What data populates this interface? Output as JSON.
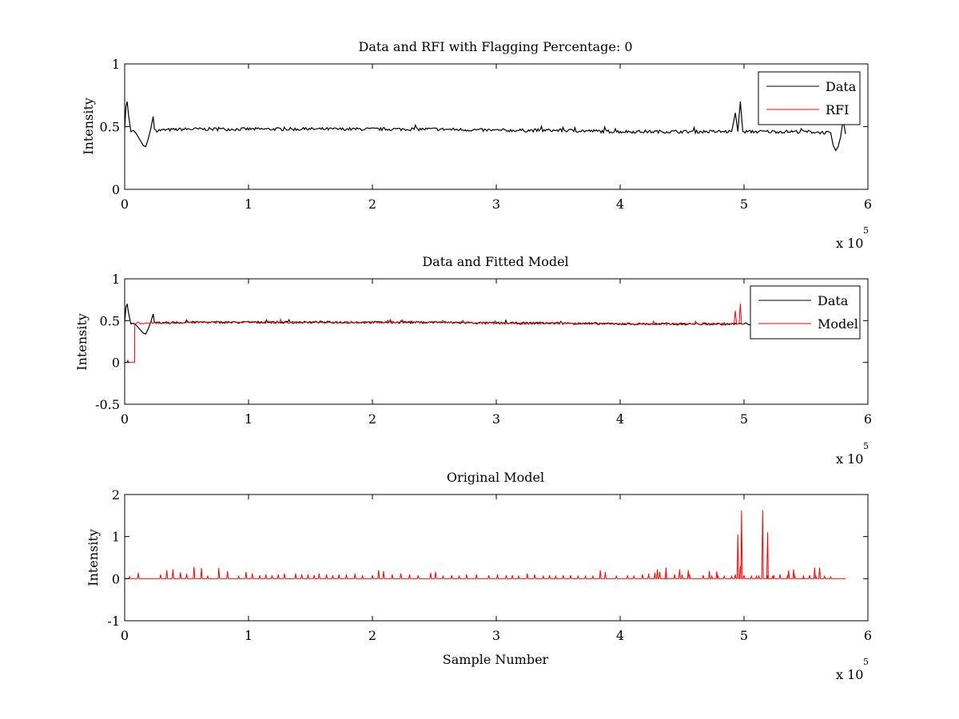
{
  "figure": {
    "background": "#ffffff",
    "colors": {
      "data": "#000000",
      "rfi": "#ff0000",
      "model": "#ff0000",
      "original": "#ff0000"
    }
  },
  "chart_data": [
    {
      "type": "line",
      "title": "Data and RFI with Flagging Percentage: 0",
      "xlabel": "",
      "ylabel": "Intensity",
      "xlim": [
        0,
        600000
      ],
      "ylim": [
        0,
        1
      ],
      "xticks": [
        0,
        100000,
        200000,
        300000,
        400000,
        500000,
        600000
      ],
      "xtick_labels": [
        "0",
        "1",
        "2",
        "3",
        "4",
        "5",
        "6"
      ],
      "yticks": [
        0,
        0.5,
        1
      ],
      "ytick_labels": [
        "0",
        "0.5",
        "1"
      ],
      "x_multiplier": {
        "text": "x 10",
        "exponent": "5"
      },
      "legend": {
        "position": "top-right",
        "entries": [
          {
            "name": "Data",
            "color": "#000000"
          },
          {
            "name": "RFI",
            "color": "#ff0000"
          }
        ]
      },
      "series": [
        {
          "name": "Data",
          "color": "#000000",
          "x": [
            0,
            1000,
            2000,
            3000,
            5000,
            7000,
            9000,
            12000,
            15000,
            17000,
            19000,
            21000,
            23000,
            24000,
            26000,
            50000,
            100000,
            150000,
            200000,
            250000,
            300000,
            350000,
            400000,
            450000,
            490000,
            493000,
            495000,
            497000,
            499000,
            501000,
            520000,
            550000,
            570000,
            572000,
            574000,
            576000,
            578000,
            580000,
            582000
          ],
          "y": [
            0.48,
            0.66,
            0.7,
            0.6,
            0.46,
            0.47,
            0.45,
            0.4,
            0.35,
            0.34,
            0.4,
            0.48,
            0.58,
            0.48,
            0.47,
            0.48,
            0.48,
            0.48,
            0.48,
            0.48,
            0.47,
            0.47,
            0.46,
            0.46,
            0.46,
            0.61,
            0.46,
            0.7,
            0.46,
            0.46,
            0.46,
            0.46,
            0.45,
            0.35,
            0.31,
            0.34,
            0.42,
            0.55,
            0.44
          ]
        },
        {
          "name": "RFI",
          "color": "#ff0000",
          "x": [],
          "y": []
        }
      ]
    },
    {
      "type": "line",
      "title": "Data and Fitted Model",
      "xlabel": "",
      "ylabel": "Intensity",
      "xlim": [
        0,
        600000
      ],
      "ylim": [
        -0.5,
        1
      ],
      "xticks": [
        0,
        100000,
        200000,
        300000,
        400000,
        500000,
        600000
      ],
      "xtick_labels": [
        "0",
        "1",
        "2",
        "3",
        "4",
        "5",
        "6"
      ],
      "yticks": [
        -0.5,
        0,
        0.5,
        1
      ],
      "ytick_labels": [
        "-0.5",
        "0",
        "0.5",
        "1"
      ],
      "x_multiplier": {
        "text": "x 10",
        "exponent": "5"
      },
      "legend": {
        "position": "top-right",
        "entries": [
          {
            "name": "Data",
            "color": "#000000"
          },
          {
            "name": "Model",
            "color": "#ff0000"
          }
        ]
      },
      "series": [
        {
          "name": "Data",
          "color": "#000000",
          "x": [
            0,
            1000,
            2000,
            3000,
            5000,
            7000,
            9000,
            12000,
            15000,
            17000,
            19000,
            21000,
            23000,
            24000,
            26000,
            50000,
            100000,
            150000,
            200000,
            250000,
            300000,
            350000,
            400000,
            450000,
            490000,
            520000,
            550000
          ],
          "y": [
            0.48,
            0.66,
            0.7,
            0.6,
            0.46,
            0.47,
            0.45,
            0.4,
            0.35,
            0.34,
            0.4,
            0.48,
            0.58,
            0.48,
            0.47,
            0.48,
            0.48,
            0.48,
            0.48,
            0.48,
            0.47,
            0.47,
            0.46,
            0.46,
            0.46,
            0.46,
            0.46
          ]
        },
        {
          "name": "Model",
          "color": "#ff0000",
          "x": [
            0,
            2000,
            2500,
            3000,
            8000,
            8000,
            10000,
            50000,
            100000,
            150000,
            200000,
            250000,
            300000,
            350000,
            400000,
            450000,
            492000,
            493000,
            494000,
            496000,
            497000,
            498000,
            500000
          ],
          "y": [
            0,
            0,
            0.03,
            0,
            0,
            0.46,
            0.47,
            0.48,
            0.48,
            0.48,
            0.48,
            0.48,
            0.47,
            0.47,
            0.46,
            0.46,
            0.46,
            0.62,
            0.46,
            0.46,
            0.7,
            0.46,
            0.46
          ]
        }
      ]
    },
    {
      "type": "line",
      "title": "Original Model",
      "xlabel": "Sample Number",
      "ylabel": "Intensity",
      "xlim": [
        0,
        600000
      ],
      "ylim": [
        -1,
        2
      ],
      "xticks": [
        0,
        100000,
        200000,
        300000,
        400000,
        500000,
        600000
      ],
      "xtick_labels": [
        "0",
        "1",
        "2",
        "3",
        "4",
        "5",
        "6"
      ],
      "yticks": [
        -1,
        0,
        1,
        2
      ],
      "ytick_labels": [
        "-1",
        "0",
        "1",
        "2"
      ],
      "x_multiplier": {
        "text": "x 10",
        "exponent": "5"
      },
      "series": [
        {
          "name": "",
          "color": "#ff0000",
          "baseline": 0,
          "x_range": [
            0,
            582000
          ],
          "spikes": [
            [
              4000,
              0.05
            ],
            [
              11000,
              0.14
            ],
            [
              29000,
              0.1
            ],
            [
              34000,
              0.2
            ],
            [
              39000,
              0.22
            ],
            [
              45000,
              0.15
            ],
            [
              50000,
              0.12
            ],
            [
              56000,
              0.28
            ],
            [
              62000,
              0.25
            ],
            [
              67000,
              0.06
            ],
            [
              76000,
              0.25
            ],
            [
              83000,
              0.18
            ],
            [
              92000,
              0.06
            ],
            [
              98000,
              0.16
            ],
            [
              103000,
              0.12
            ],
            [
              109000,
              0.08
            ],
            [
              114000,
              0.1
            ],
            [
              119000,
              0.08
            ],
            [
              124000,
              0.1
            ],
            [
              129000,
              0.12
            ],
            [
              138000,
              0.12
            ],
            [
              143000,
              0.1
            ],
            [
              148000,
              0.1
            ],
            [
              153000,
              0.08
            ],
            [
              157000,
              0.12
            ],
            [
              163000,
              0.1
            ],
            [
              168000,
              0.08
            ],
            [
              173000,
              0.1
            ],
            [
              179000,
              0.1
            ],
            [
              186000,
              0.12
            ],
            [
              192000,
              0.08
            ],
            [
              200000,
              0.08
            ],
            [
              205000,
              0.2
            ],
            [
              209000,
              0.18
            ],
            [
              216000,
              0.1
            ],
            [
              223000,
              0.12
            ],
            [
              230000,
              0.1
            ],
            [
              237000,
              0.08
            ],
            [
              247000,
              0.14
            ],
            [
              251000,
              0.16
            ],
            [
              257000,
              0.06
            ],
            [
              264000,
              0.08
            ],
            [
              270000,
              0.06
            ],
            [
              276000,
              0.1
            ],
            [
              284000,
              0.1
            ],
            [
              294000,
              0.08
            ],
            [
              301000,
              0.1
            ],
            [
              308000,
              0.08
            ],
            [
              313000,
              0.08
            ],
            [
              318000,
              0.06
            ],
            [
              325000,
              0.12
            ],
            [
              331000,
              0.1
            ],
            [
              338000,
              0.06
            ],
            [
              343000,
              0.08
            ],
            [
              348000,
              0.06
            ],
            [
              354000,
              0.08
            ],
            [
              360000,
              0.08
            ],
            [
              366000,
              0.06
            ],
            [
              372000,
              0.06
            ],
            [
              378000,
              0.06
            ],
            [
              384000,
              0.2
            ],
            [
              388000,
              0.16
            ],
            [
              397000,
              0.06
            ],
            [
              406000,
              0.08
            ],
            [
              411000,
              0.06
            ],
            [
              418000,
              0.1
            ],
            [
              423000,
              0.12
            ],
            [
              428000,
              0.14
            ],
            [
              432000,
              0.16
            ],
            [
              437000,
              0.14
            ],
            [
              444000,
              0.1
            ],
            [
              450000,
              0.1
            ],
            [
              456000,
              0.1
            ],
            [
              467000,
              0.08
            ],
            [
              474000,
              0.06
            ],
            [
              479000,
              0.06
            ],
            [
              484000,
              0.06
            ],
            [
              490000,
              0.06
            ],
            [
              493000,
              0.1
            ],
            [
              500000,
              0.08
            ],
            [
              512000,
              0.06
            ],
            [
              519000,
              0.06
            ],
            [
              524000,
              0.08
            ],
            [
              529000,
              0.1
            ],
            [
              535000,
              0.06
            ],
            [
              541000,
              0.06
            ],
            [
              548000,
              0.06
            ],
            [
              553000,
              0.08
            ],
            [
              558000,
              0.06
            ],
            [
              565000,
              0.06
            ],
            [
              430000,
              0.22
            ],
            [
              437000,
              0.26
            ],
            [
              448000,
              0.22
            ],
            [
              455000,
              0.2
            ],
            [
              472000,
              0.18
            ],
            [
              478000,
              0.17
            ],
            [
              495000,
              1.05
            ],
            [
              497000,
              0.3
            ],
            [
              498000,
              1.62
            ],
            [
              506000,
              0.06
            ],
            [
              510000,
              0.06
            ],
            [
              515000,
              1.63
            ],
            [
              519000,
              1.1
            ],
            [
              523000,
              0.05
            ],
            [
              536000,
              0.2
            ],
            [
              540000,
              0.22
            ],
            [
              548000,
              0.06
            ],
            [
              557000,
              0.26
            ],
            [
              561000,
              0.26
            ],
            [
              570000,
              0.04
            ]
          ]
        }
      ]
    }
  ]
}
